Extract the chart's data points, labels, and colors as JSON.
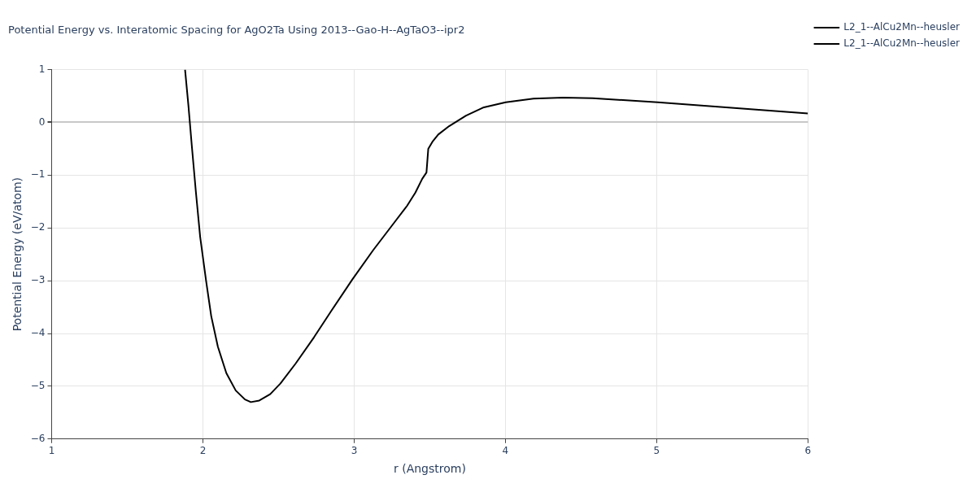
{
  "chart_data": {
    "type": "line",
    "title": "Potential Energy vs. Interatomic Spacing for AgO2Ta Using 2013--Gao-H--AgTaO3--ipr2",
    "xlabel": "r (Angstrom)",
    "ylabel": "Potential Energy (eV/atom)",
    "x": [
      1.882,
      1.904,
      1.926,
      1.954,
      1.982,
      2.021,
      2.055,
      2.099,
      2.155,
      2.217,
      2.278,
      2.317,
      2.373,
      2.445,
      2.512,
      2.613,
      2.735,
      2.847,
      2.987,
      3.126,
      3.238,
      3.35,
      3.405,
      3.45,
      3.478,
      3.49,
      3.517,
      3.556,
      3.628,
      3.74,
      3.852,
      4.002,
      4.186,
      4.382,
      4.577,
      5.007,
      6.0
    ],
    "series": [
      {
        "name": "L2_1--AlCu2Mn--heusler",
        "color": "#000000",
        "values": [
          1.0,
          0.33,
          -0.42,
          -1.33,
          -2.17,
          -3.0,
          -3.67,
          -4.25,
          -4.75,
          -5.08,
          -5.25,
          -5.3,
          -5.27,
          -5.15,
          -4.95,
          -4.57,
          -4.07,
          -3.58,
          -2.98,
          -2.42,
          -2.0,
          -1.58,
          -1.33,
          -1.07,
          -0.95,
          -0.5,
          -0.37,
          -0.23,
          -0.07,
          0.13,
          0.28,
          0.38,
          0.45,
          0.47,
          0.46,
          0.38,
          0.17
        ]
      },
      {
        "name": "L2_1--AlCu2Mn--heusler",
        "color": "#000000",
        "values": [
          null,
          null,
          null,
          null,
          null,
          null,
          null,
          null,
          null,
          null,
          null,
          null,
          null,
          null,
          null,
          null,
          null,
          null,
          null,
          null,
          null,
          null,
          null,
          null,
          null,
          null,
          null,
          null,
          null,
          null,
          null,
          null,
          null,
          null,
          null,
          null,
          null
        ]
      }
    ],
    "xlim": [
      1,
      6
    ],
    "xticks": [
      1,
      2,
      3,
      4,
      5,
      6
    ],
    "ylim": [
      -6,
      1
    ],
    "yticks": [
      -6,
      -5,
      -4,
      -3,
      -2,
      -1,
      0,
      1
    ],
    "grid": true,
    "legend": "top right",
    "marker": "none",
    "line_style": "solid"
  }
}
